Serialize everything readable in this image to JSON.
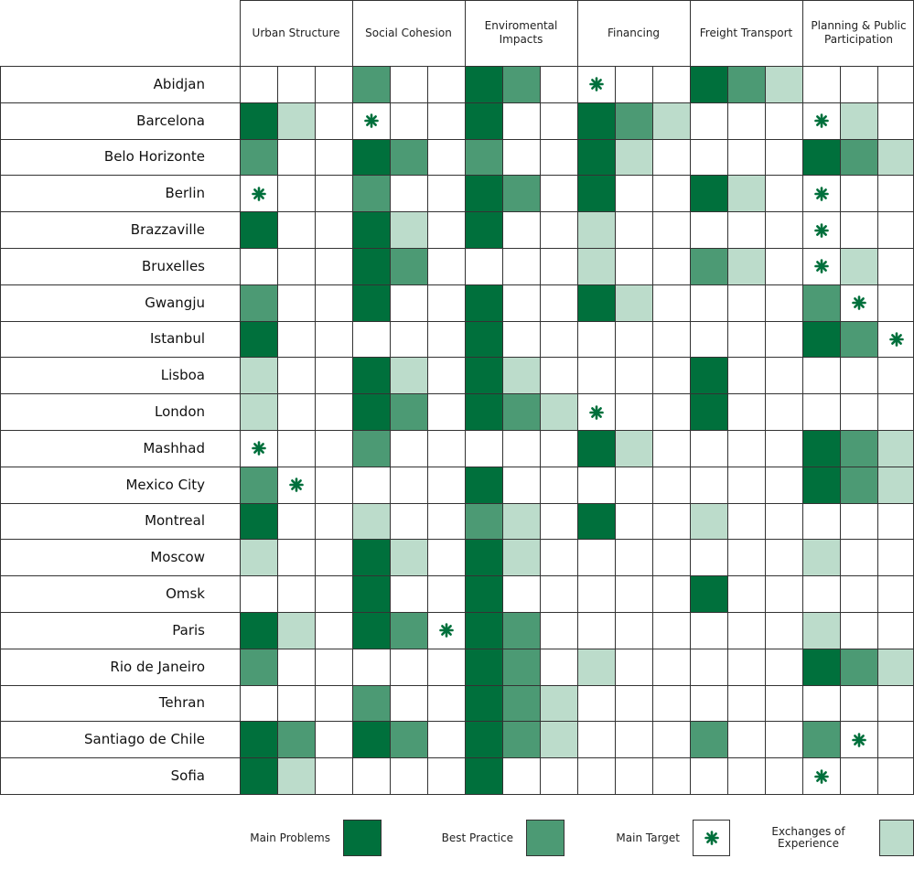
{
  "table": {
    "groups": [
      "Urban Structure",
      "Social Cohesion",
      "Enviromental Impacts",
      "Financing",
      "Freight Transport",
      "Planning & Public Participation"
    ],
    "rows": [
      {
        "city": "Abidjan",
        "cells": [
          "",
          "",
          "",
          "B",
          "",
          "",
          "P",
          "B",
          "",
          "T",
          "",
          "",
          "P",
          "B",
          "E",
          "",
          "",
          ""
        ]
      },
      {
        "city": "Barcelona",
        "cells": [
          "P",
          "E",
          "",
          "T",
          "",
          "",
          "P",
          "",
          "",
          "P",
          "B",
          "E",
          "",
          "",
          "",
          "T",
          "E",
          ""
        ]
      },
      {
        "city": "Belo Horizonte",
        "cells": [
          "B",
          "",
          "",
          "P",
          "B",
          "",
          "B",
          "",
          "",
          "P",
          "E",
          "",
          "",
          "",
          "",
          "P",
          "B",
          "E"
        ]
      },
      {
        "city": "Berlin",
        "cells": [
          "T",
          "",
          "",
          "B",
          "",
          "",
          "P",
          "B",
          "",
          "P",
          "",
          "",
          "P",
          "E",
          "",
          "T",
          "",
          ""
        ]
      },
      {
        "city": "Brazzaville",
        "cells": [
          "P",
          "",
          "",
          "P",
          "E",
          "",
          "P",
          "",
          "",
          "E",
          "",
          "",
          "",
          "",
          "",
          "T",
          "",
          ""
        ]
      },
      {
        "city": "Bruxelles",
        "cells": [
          "",
          "",
          "",
          "P",
          "B",
          "",
          "",
          "",
          "",
          "E",
          "",
          "",
          "B",
          "E",
          "",
          "T",
          "E",
          ""
        ]
      },
      {
        "city": "Gwangju",
        "cells": [
          "B",
          "",
          "",
          "P",
          "",
          "",
          "P",
          "",
          "",
          "P",
          "E",
          "",
          "",
          "",
          "",
          "B",
          "T",
          ""
        ]
      },
      {
        "city": "Istanbul",
        "cells": [
          "P",
          "",
          "",
          "",
          "",
          "",
          "P",
          "",
          "",
          "",
          "",
          "",
          "",
          "",
          "",
          "P",
          "B",
          "T"
        ]
      },
      {
        "city": "Lisboa",
        "cells": [
          "E",
          "",
          "",
          "P",
          "E",
          "",
          "P",
          "E",
          "",
          "",
          "",
          "",
          "P",
          "",
          "",
          "",
          "",
          ""
        ]
      },
      {
        "city": "London",
        "cells": [
          "E",
          "",
          "",
          "P",
          "B",
          "",
          "P",
          "B",
          "E",
          "T",
          "",
          "",
          "P",
          "",
          "",
          "",
          "",
          ""
        ]
      },
      {
        "city": "Mashhad",
        "cells": [
          "T",
          "",
          "",
          "B",
          "",
          "",
          "",
          "",
          "",
          "P",
          "E",
          "",
          "",
          "",
          "",
          "P",
          "B",
          "E"
        ]
      },
      {
        "city": "Mexico City",
        "cells": [
          "B",
          "T",
          "",
          "",
          "",
          "",
          "P",
          "",
          "",
          "",
          "",
          "",
          "",
          "",
          "",
          "P",
          "B",
          "E"
        ]
      },
      {
        "city": "Montreal",
        "cells": [
          "P",
          "",
          "",
          "E",
          "",
          "",
          "B",
          "E",
          "",
          "P",
          "",
          "",
          "E",
          "",
          "",
          "",
          "",
          ""
        ]
      },
      {
        "city": "Moscow",
        "cells": [
          "E",
          "",
          "",
          "P",
          "E",
          "",
          "P",
          "E",
          "",
          "",
          "",
          "",
          "",
          "",
          "",
          "E",
          "",
          ""
        ]
      },
      {
        "city": "Omsk",
        "cells": [
          "",
          "",
          "",
          "P",
          "",
          "",
          "P",
          "",
          "",
          "",
          "",
          "",
          "P",
          "",
          "",
          "",
          "",
          ""
        ]
      },
      {
        "city": "Paris",
        "cells": [
          "P",
          "E",
          "",
          "P",
          "B",
          "T",
          "P",
          "B",
          "",
          "",
          "",
          "",
          "",
          "",
          "",
          "E",
          "",
          ""
        ]
      },
      {
        "city": "Rio de Janeiro",
        "cells": [
          "B",
          "",
          "",
          "",
          "",
          "",
          "P",
          "B",
          "",
          "E",
          "",
          "",
          "",
          "",
          "",
          "P",
          "B",
          "E"
        ]
      },
      {
        "city": "Tehran",
        "cells": [
          "",
          "",
          "",
          "B",
          "",
          "",
          "P",
          "B",
          "E",
          "",
          "",
          "",
          "",
          "",
          "",
          "",
          "",
          ""
        ]
      },
      {
        "city": "Santiago de Chile",
        "cells": [
          "P",
          "B",
          "",
          "P",
          "B",
          "",
          "P",
          "B",
          "E",
          "",
          "",
          "",
          "B",
          "",
          "",
          "B",
          "T",
          ""
        ]
      },
      {
        "city": "Sofia",
        "cells": [
          "P",
          "E",
          "",
          "",
          "",
          "",
          "P",
          "",
          "",
          "",
          "",
          "",
          "",
          "",
          "",
          "T",
          "",
          ""
        ]
      }
    ]
  },
  "legend": [
    {
      "key": "P",
      "label": "Main Problems",
      "color": "#00703c"
    },
    {
      "key": "B",
      "label": "Best Practice",
      "color": "#4c9a74"
    },
    {
      "key": "T",
      "label": "Main Target",
      "color": "#00703c"
    },
    {
      "key": "E",
      "label": "Exchanges of Experience",
      "color": "#bcdccb"
    }
  ]
}
